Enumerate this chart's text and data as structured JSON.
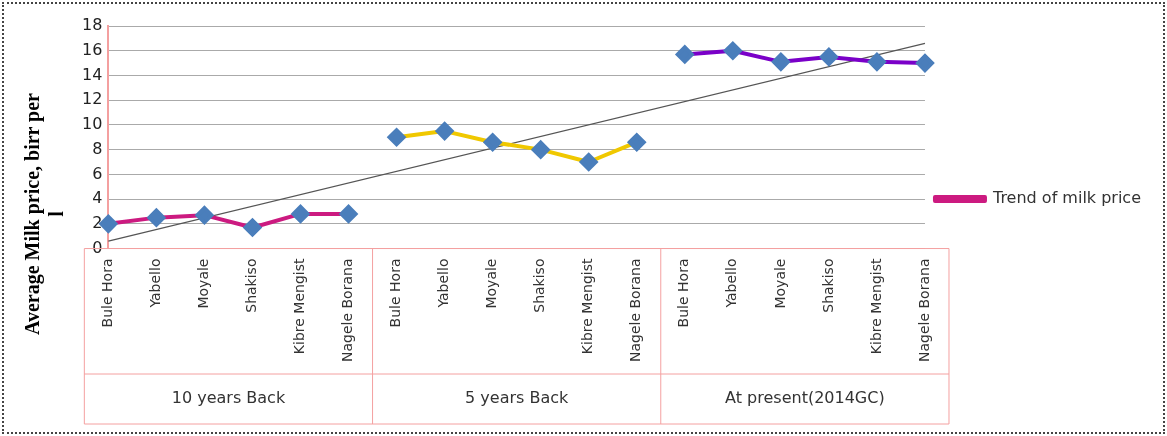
{
  "chart_data": {
    "type": "line",
    "ylabel": "Average Milk price, birr per l",
    "categories": [
      "Bule Hora",
      "Yabello",
      "Moyale",
      "Shakiso",
      "Kibre Mengist",
      "Nagele Borana",
      "Bule Hora",
      "Yabello",
      "Moyale",
      "Shakiso",
      "Kibre Mengist",
      "Nagele Borana",
      "Bule Hora",
      "Yabello",
      "Moyale",
      "Shakiso",
      "Kibre Mengist",
      "Nagele Borana"
    ],
    "series": [
      {
        "name": "Trend of milk price",
        "color": "#cc1a80",
        "values": [
          2.0,
          2.5,
          2.7,
          1.7,
          2.8,
          2.8,
          null,
          null,
          null,
          null,
          null,
          null,
          null,
          null,
          null,
          null,
          null,
          null
        ]
      },
      {
        "color": "#f0c800",
        "values": [
          null,
          null,
          null,
          null,
          null,
          null,
          9.0,
          9.5,
          8.6,
          8.0,
          7.0,
          8.6,
          null,
          null,
          null,
          null,
          null,
          null
        ]
      },
      {
        "color": "#7a00c8",
        "values": [
          null,
          null,
          null,
          null,
          null,
          null,
          null,
          null,
          null,
          null,
          null,
          null,
          15.7,
          16.0,
          15.1,
          15.5,
          15.1,
          15.0
        ]
      },
      {
        "type": "line",
        "color": "#555555",
        "marker": "none",
        "values": [
          0.6,
          null,
          null,
          null,
          null,
          null,
          null,
          null,
          null,
          null,
          null,
          null,
          null,
          null,
          null,
          null,
          null,
          16.6
        ]
      }
    ],
    "marker": "diamond",
    "grid": "y",
    "legend": "right",
    "ylim": [
      0,
      18
    ],
    "yticks": [
      0,
      2,
      4,
      6,
      8,
      10,
      12,
      14,
      16,
      18
    ],
    "annotations": [
      "10 years Back",
      "5 years Back",
      "At present(2014GC)"
    ]
  }
}
